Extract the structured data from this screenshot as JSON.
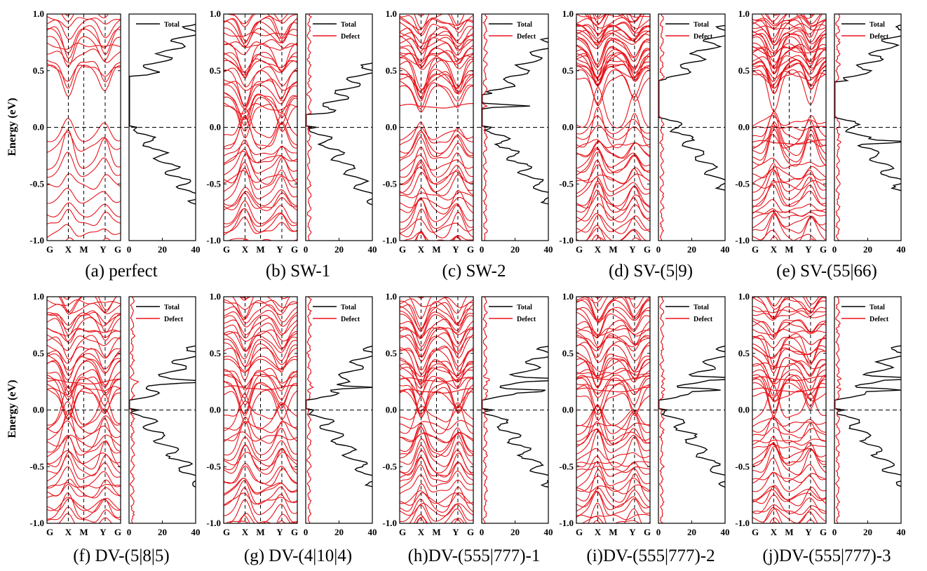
{
  "figure": {
    "ylabel": "Energy (eV)",
    "y_ticks": [
      "1.0",
      "0.5",
      "0.0",
      "-0.5",
      "-1.0"
    ],
    "k_labels": [
      "G",
      "X",
      "M",
      "Y",
      "G"
    ],
    "dos_ticks": [
      "0",
      "20",
      "40"
    ],
    "legend_total": "Total",
    "legend_defect": "Defect",
    "colors": {
      "band": "#e8141b",
      "total": "#000000",
      "defect": "#e8141b",
      "fermi": "#000000"
    }
  },
  "chart_data": [
    {
      "id": "a",
      "type": "line",
      "caption": "(a) perfect",
      "has_defect": false,
      "ylim": [
        -1.0,
        1.0
      ],
      "dos_xlim": [
        0,
        40
      ],
      "gap": [
        0.0,
        0.46
      ],
      "band_density": 0.45,
      "extra_levels": []
    },
    {
      "id": "b",
      "type": "line",
      "caption": "(b) SW-1",
      "has_defect": true,
      "ylim": [
        -1.0,
        1.0
      ],
      "dos_xlim": [
        0,
        40
      ],
      "gap": [
        0.0,
        0.12
      ],
      "band_density": 1.0,
      "extra_levels": []
    },
    {
      "id": "c",
      "type": "line",
      "caption": "(c) SW-2",
      "has_defect": true,
      "ylim": [
        -1.0,
        1.0
      ],
      "dos_xlim": [
        0,
        40
      ],
      "gap": [
        0.0,
        0.3
      ],
      "band_density": 1.0,
      "extra_levels": [
        0.19
      ]
    },
    {
      "id": "d",
      "type": "line",
      "caption": "(d) SV-(5|9)",
      "has_defect": true,
      "ylim": [
        -1.0,
        1.0
      ],
      "dos_xlim": [
        0,
        40
      ],
      "gap": [
        0.1,
        0.42
      ],
      "band_density": 1.2,
      "extra_levels": []
    },
    {
      "id": "e",
      "type": "line",
      "caption": "(e) SV-(55|66)",
      "has_defect": true,
      "ylim": [
        -1.0,
        1.0
      ],
      "dos_xlim": [
        0,
        40
      ],
      "gap": [
        0.1,
        0.4
      ],
      "band_density": 1.2,
      "extra_levels": [
        -0.13
      ]
    },
    {
      "id": "f",
      "type": "line",
      "caption": "(f) DV-(5|8|5)",
      "has_defect": true,
      "ylim": [
        -1.0,
        1.0
      ],
      "dos_xlim": [
        0,
        40
      ],
      "gap": [
        0.0,
        0.1
      ],
      "band_density": 1.0,
      "extra_levels": [
        0.25
      ]
    },
    {
      "id": "g",
      "type": "line",
      "caption": "(g) DV-(4|10|4)",
      "has_defect": true,
      "ylim": [
        -1.0,
        1.0
      ],
      "dos_xlim": [
        0,
        40
      ],
      "gap": [
        0.0,
        0.1
      ],
      "band_density": 1.0,
      "extra_levels": [
        0.2
      ]
    },
    {
      "id": "h",
      "type": "line",
      "caption": "(h)DV-(555|777)-1",
      "has_defect": true,
      "ylim": [
        -1.0,
        1.0
      ],
      "dos_xlim": [
        0,
        40
      ],
      "gap": [
        0.0,
        0.1
      ],
      "band_density": 1.1,
      "extra_levels": [
        0.17,
        0.27
      ]
    },
    {
      "id": "i",
      "type": "line",
      "caption": "(i)DV-(555|777)-2",
      "has_defect": true,
      "ylim": [
        -1.0,
        1.0
      ],
      "dos_xlim": [
        0,
        40
      ],
      "gap": [
        0.0,
        0.1
      ],
      "band_density": 1.1,
      "extra_levels": [
        0.18,
        0.28
      ]
    },
    {
      "id": "j",
      "type": "line",
      "caption": "(j)DV-(555|777)-3",
      "has_defect": true,
      "ylim": [
        -1.0,
        1.0
      ],
      "dos_xlim": [
        0,
        40
      ],
      "gap": [
        0.0,
        0.1
      ],
      "band_density": 1.1,
      "extra_levels": [
        0.18,
        0.28
      ]
    }
  ]
}
